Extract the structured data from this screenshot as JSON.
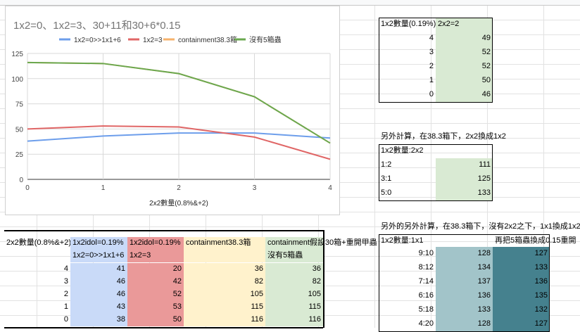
{
  "chart": {
    "title": "1x2=0、1x2=3、30+11和30+6*0.15",
    "xlabel": "2x2數量(0.8%&+2)",
    "legend": [
      {
        "name": "1x2=0>>1x1+6",
        "color": "#6d9eeb"
      },
      {
        "name": "1x2=3",
        "color": "#e06666"
      },
      {
        "name": "containment38.3箱",
        "color": "#f6b26b"
      },
      {
        "name": "沒有5箱蟲",
        "color": "#6aa84f"
      }
    ],
    "y_ticks": [
      "0",
      "25",
      "50",
      "75",
      "100",
      "125"
    ],
    "x_ticks": [
      "0",
      "1",
      "2",
      "3",
      "4"
    ]
  },
  "chart_data": {
    "type": "line",
    "title": "1x2=0、1x2=3、30+11和30+6*0.15",
    "xlabel": "2x2數量(0.8%&+2)",
    "ylabel": "",
    "x": [
      0,
      1,
      2,
      3,
      4
    ],
    "ylim": [
      0,
      125
    ],
    "xlim": [
      0,
      4
    ],
    "grid": true,
    "legend_position": "top",
    "series": [
      {
        "name": "1x2=0>>1x1+6",
        "color": "#6d9eeb",
        "values": [
          38,
          43,
          46,
          46,
          41
        ]
      },
      {
        "name": "1x2=3",
        "color": "#e06666",
        "values": [
          50,
          53,
          52,
          42,
          20
        ]
      },
      {
        "name": "containment38.3箱",
        "color": "#f6b26b",
        "values": [
          116,
          115,
          105,
          82,
          36
        ]
      },
      {
        "name": "沒有5箱蟲",
        "color": "#6aa84f",
        "values": [
          116,
          115,
          105,
          82,
          36
        ]
      }
    ]
  },
  "table1": {
    "header": [
      "1x2數量(0.19%)",
      "2x2=2"
    ],
    "rows": [
      [
        "4",
        "49"
      ],
      [
        "3",
        "52"
      ],
      [
        "2",
        "52"
      ],
      [
        "1",
        "50"
      ],
      [
        "0",
        "46"
      ]
    ]
  },
  "table2": {
    "caption": "另外計算，在38.3箱下，2x2換成1x2",
    "header": "1x2數量:2x2",
    "rows": [
      [
        "1:2",
        "111"
      ],
      [
        "3:1",
        "125"
      ],
      [
        "5:0",
        "133"
      ]
    ]
  },
  "table3": {
    "caption": "另外的另外計算，在38.3箱下，沒有2x2之下，1x1換成1x2",
    "header_left": "1x2數量:1x1",
    "header_right": "再把5箱蟲換成0.15重開",
    "rows": [
      [
        "9:10",
        "128",
        "127"
      ],
      [
        "8:12",
        "134",
        "133"
      ],
      [
        "7:14",
        "137",
        "136"
      ],
      [
        "6:16",
        "136",
        "135"
      ],
      [
        "5:18",
        "133",
        "132"
      ],
      [
        "4:20",
        "128",
        "127"
      ]
    ]
  },
  "main_table": {
    "headers_row1": [
      "2x2數量(0.8%&+2)",
      "1x2idol=0.19%",
      "1x2idol=0.19%",
      "containment38.3箱",
      "containment假設30箱+重開甲蟲"
    ],
    "headers_row2": [
      "",
      "1x2=0>>1x1+6",
      "1x2=3",
      "",
      "沒有5箱蟲"
    ],
    "rows": [
      [
        "4",
        "41",
        "20",
        "36",
        "36"
      ],
      [
        "3",
        "46",
        "42",
        "82",
        "82"
      ],
      [
        "2",
        "46",
        "52",
        "105",
        "105"
      ],
      [
        "1",
        "43",
        "53",
        "115",
        "115"
      ],
      [
        "0",
        "38",
        "50",
        "116",
        "116"
      ]
    ]
  }
}
